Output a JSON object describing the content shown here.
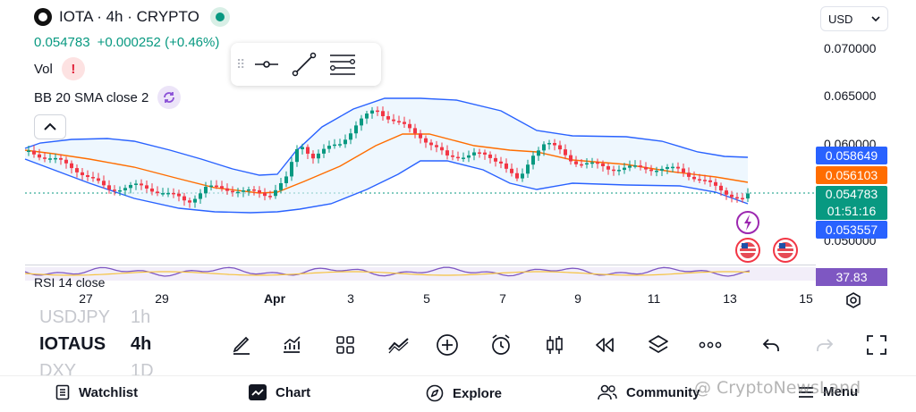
{
  "header": {
    "title": "IOTA · 4h · CRYPTO",
    "last_price": "0.054783",
    "change": "+0.000252 (+0.46%)"
  },
  "indicators": {
    "vol_label": "Vol",
    "bb_label": "BB 20 SMA close 2",
    "rsi_label": "RSI 14 close"
  },
  "currency": {
    "label": "USD"
  },
  "price_axis": {
    "labels": [
      "0.070000",
      "0.065000",
      "0.060000",
      "0.050000"
    ]
  },
  "price_tags": {
    "bb_upper": "0.058649",
    "bb_basis": "0.056103",
    "last_price": "0.054783",
    "countdown": "01:51:16",
    "bb_lower": "0.053557",
    "rsi": "37.83"
  },
  "colors": {
    "up": "#089981",
    "down": "#f23645",
    "bb_band": "#2962ff",
    "bb_basis": "#ff6d00",
    "rsi": "#7e57c2"
  },
  "time_axis": {
    "labels": [
      "27",
      "29",
      "Apr",
      "3",
      "5",
      "7",
      "9",
      "11",
      "13",
      "15"
    ]
  },
  "symbols": [
    {
      "name": "USDJPY",
      "interval": "1h"
    },
    {
      "name": "IOTAUS",
      "interval": "4h"
    },
    {
      "name": "DXY",
      "interval": "1D"
    }
  ],
  "toolbar_icons": [
    "pencil-icon",
    "indicators-icon",
    "layouts-icon",
    "drawings-icon",
    "add-icon",
    "alert-icon",
    "candles-icon",
    "replay-icon",
    "layers-icon",
    "more-icon",
    "undo-icon",
    "redo-icon",
    "fullscreen-icon"
  ],
  "bottom_nav": {
    "watchlist": "Watchlist",
    "chart": "Chart",
    "explore": "Explore",
    "community": "Community",
    "menu": "Menu"
  },
  "watermark": "@ CryptoNewsLand"
}
